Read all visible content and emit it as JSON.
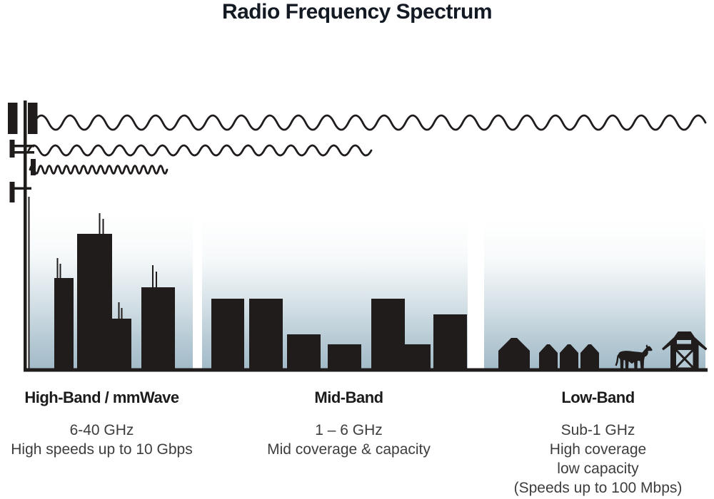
{
  "title": "Radio Frequency Spectrum",
  "colors": {
    "ink": "#201c1b",
    "title_text": "#141a24",
    "heading_text": "#1b1b1b",
    "body_text": "#3d3d3c",
    "sky_top": "#ffffff",
    "sky_bottom": "#a3bbc9",
    "barn_openings": "#b4c9d4"
  },
  "icons": [
    "cell-tower-icon",
    "radio-wave-icon",
    "skyscraper-icon",
    "building-icon",
    "house-icon",
    "cow-icon",
    "barn-icon"
  ],
  "waves": [
    {
      "name": "low-band-wave",
      "wavelength": "long",
      "reach": "longest"
    },
    {
      "name": "mid-band-wave",
      "wavelength": "medium",
      "reach": "medium"
    },
    {
      "name": "high-band-wave",
      "wavelength": "short",
      "reach": "shortest"
    }
  ],
  "sections": [
    {
      "id": "high-band",
      "heading": "High-Band / mmWave",
      "lines": [
        "6-40 GHz",
        "High speeds up to 10 Gbps"
      ],
      "scene": "city-skyscrapers"
    },
    {
      "id": "mid-band",
      "heading": "Mid-Band",
      "lines": [
        "1 – 6 GHz",
        "Mid coverage & capacity"
      ],
      "scene": "mid-rise-buildings"
    },
    {
      "id": "low-band",
      "heading": "Low-Band",
      "lines": [
        "Sub-1 GHz",
        "High coverage",
        "low capacity",
        "(Speeds up to 100 Mbps)"
      ],
      "scene": "rural-farm"
    }
  ]
}
